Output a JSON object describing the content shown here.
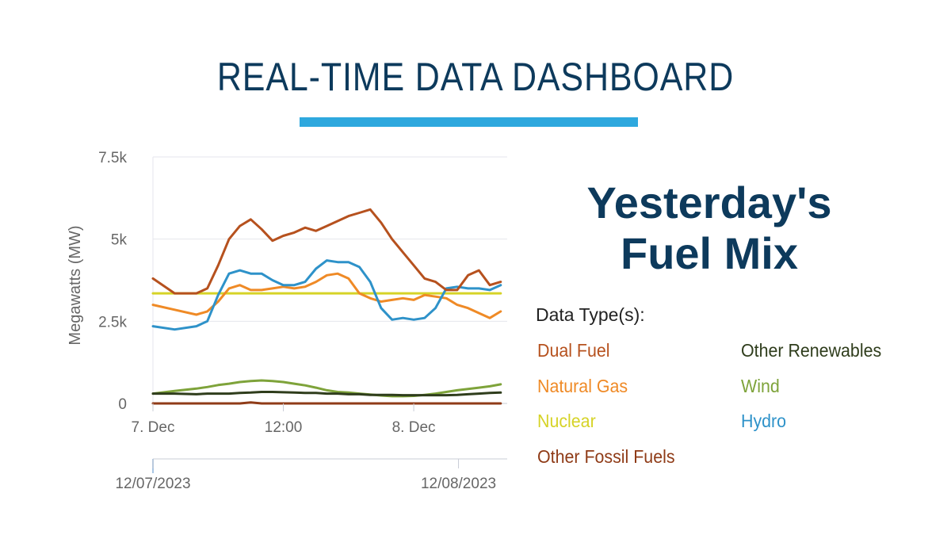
{
  "header": {
    "title": "REAL-TIME DATA DASHBOARD"
  },
  "side": {
    "heading_line1": "Yesterday's",
    "heading_line2": "Fuel Mix",
    "legend_title": "Data Type(s):"
  },
  "colors": {
    "title": "#0d3a5c",
    "accent_bar": "#2ea8de",
    "dual_fuel": "#b6511e",
    "natural_gas": "#ef8a26",
    "nuclear": "#d6d327",
    "other_fossil": "#8f3b17",
    "other_renewables": "#2f3d1c",
    "wind": "#7ea33a",
    "hydro": "#2e92c9"
  },
  "chart_data": {
    "type": "line",
    "title": "",
    "xlabel": "",
    "ylabel": "Megawatts (MW)",
    "ylim": [
      0,
      7500
    ],
    "yticks": [
      0,
      2500,
      5000,
      7500
    ],
    "ytick_labels": [
      "0",
      "2.5k",
      "5k",
      "7.5k"
    ],
    "xlim_hours": [
      0,
      32
    ],
    "xticks_hours": [
      0,
      12,
      24,
      36
    ],
    "xtick_labels": [
      "7. Dec",
      "12:00",
      "8. Dec",
      "12:00"
    ],
    "navigator_labels": [
      "12/07/2023",
      "12/08/2023"
    ],
    "navigator_ticks_hours": [
      0,
      24
    ],
    "grid": "horizontal",
    "legend_position": "right",
    "x": [
      0,
      2,
      4,
      5,
      6,
      7,
      8,
      9,
      10,
      11,
      12,
      13,
      14,
      15,
      16,
      17,
      18,
      19,
      20,
      21,
      22,
      23,
      24,
      25,
      26,
      27,
      28,
      29,
      30,
      31,
      32
    ],
    "series": [
      {
        "name": "Dual Fuel",
        "key": "dual_fuel",
        "values": [
          3800,
          3350,
          3350,
          3500,
          4200,
          5000,
          5400,
          5600,
          5300,
          4950,
          5100,
          5200,
          5350,
          5250,
          5400,
          5550,
          5700,
          5800,
          5900,
          5500,
          5000,
          4600,
          4200,
          3800,
          3700,
          3450,
          3450,
          3900,
          4050,
          3600,
          3700
        ]
      },
      {
        "name": "Natural Gas",
        "key": "natural_gas",
        "values": [
          3000,
          2850,
          2700,
          2800,
          3100,
          3500,
          3600,
          3450,
          3450,
          3500,
          3550,
          3500,
          3550,
          3700,
          3900,
          3950,
          3800,
          3350,
          3200,
          3100,
          3150,
          3200,
          3150,
          3300,
          3250,
          3200,
          3000,
          2900,
          2750,
          2600,
          2800
        ]
      },
      {
        "name": "Nuclear",
        "key": "nuclear",
        "values": [
          3350,
          3350,
          3350,
          3350,
          3350,
          3350,
          3350,
          3350,
          3350,
          3350,
          3350,
          3350,
          3350,
          3350,
          3350,
          3350,
          3350,
          3350,
          3350,
          3350,
          3350,
          3350,
          3350,
          3350,
          3350,
          3350,
          3350,
          3350,
          3350,
          3350,
          3350
        ]
      },
      {
        "name": "Other Fossil Fuels",
        "key": "other_fossil",
        "values": [
          0,
          0,
          0,
          0,
          0,
          0,
          0,
          30,
          0,
          0,
          0,
          0,
          0,
          0,
          0,
          0,
          0,
          0,
          0,
          0,
          0,
          0,
          0,
          0,
          0,
          0,
          0,
          0,
          0,
          0,
          0
        ]
      },
      {
        "name": "Other Renewables",
        "key": "other_renewables",
        "values": [
          300,
          300,
          280,
          300,
          300,
          300,
          320,
          330,
          350,
          350,
          340,
          330,
          320,
          320,
          300,
          300,
          280,
          280,
          260,
          260,
          260,
          250,
          250,
          250,
          250,
          250,
          260,
          280,
          300,
          320,
          330
        ]
      },
      {
        "name": "Wind",
        "key": "wind",
        "values": [
          300,
          380,
          450,
          500,
          560,
          600,
          650,
          680,
          700,
          680,
          650,
          600,
          550,
          480,
          400,
          350,
          330,
          300,
          270,
          240,
          220,
          220,
          230,
          260,
          300,
          350,
          400,
          440,
          480,
          520,
          580
        ]
      },
      {
        "name": "Hydro",
        "key": "hydro",
        "values": [
          2350,
          2250,
          2350,
          2500,
          3300,
          3950,
          4050,
          3950,
          3950,
          3750,
          3600,
          3600,
          3700,
          4100,
          4350,
          4300,
          4300,
          4150,
          3700,
          2900,
          2550,
          2600,
          2550,
          2600,
          2900,
          3500,
          3550,
          3500,
          3500,
          3450,
          3600
        ]
      }
    ]
  }
}
